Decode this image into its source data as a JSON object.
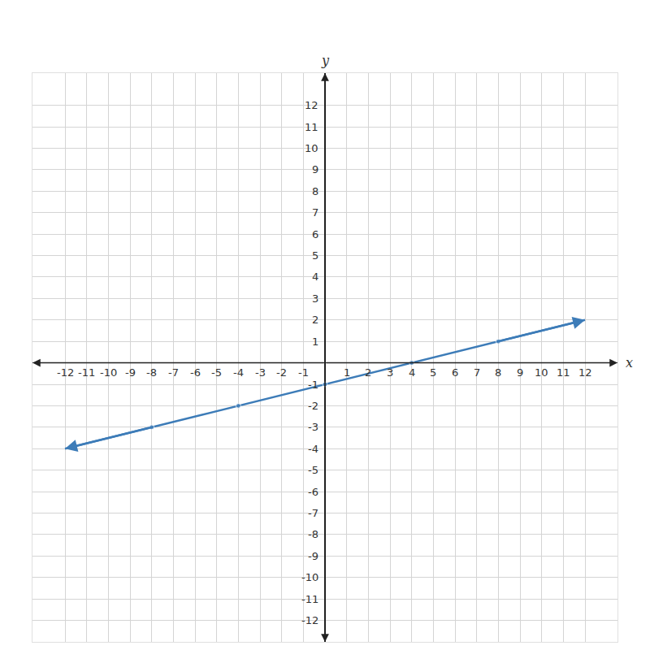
{
  "chart_data": {
    "type": "line",
    "x_label": "x",
    "y_label": "y",
    "x": [
      -12,
      -8,
      -4,
      0,
      4,
      8,
      12
    ],
    "values": [
      -4,
      -3,
      -2,
      -1,
      0,
      1,
      2
    ],
    "color": "#3d7cb8",
    "marker": "circle",
    "xlim": [
      -13.5,
      13.5
    ],
    "ylim": [
      -13,
      13.5
    ],
    "xticks": [
      -12,
      -11,
      -10,
      -9,
      -8,
      -7,
      -6,
      -5,
      -4,
      -3,
      -2,
      -1,
      1,
      2,
      3,
      4,
      5,
      6,
      7,
      8,
      9,
      10,
      11,
      12
    ],
    "yticks": [
      -12,
      -11,
      -10,
      -9,
      -8,
      -7,
      -6,
      -5,
      -4,
      -3,
      -2,
      -1,
      1,
      2,
      3,
      4,
      5,
      6,
      7,
      8,
      9,
      10,
      11,
      12
    ],
    "grid": true
  }
}
